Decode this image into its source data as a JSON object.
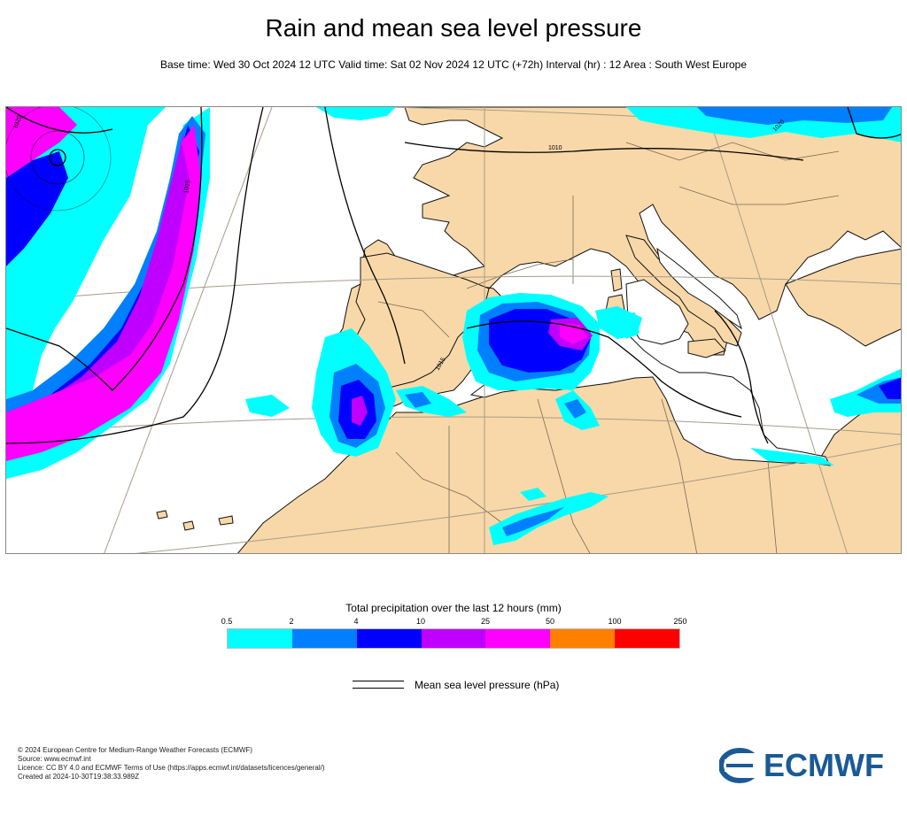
{
  "header": {
    "title": "Rain and mean sea level pressure",
    "subtitle": "Base time: Wed 30 Oct 2024 12 UTC Valid time: Sat 02 Nov 2024 12 UTC (+72h) Interval (hr) : 12 Area : South West Europe"
  },
  "map": {
    "isobar_labels": [
      "1020",
      "1015",
      "1010",
      "1015",
      "1020"
    ],
    "colors": {
      "land": "#f8d8a8",
      "sea": "#ffffff",
      "border": "#7a6a55",
      "coast": "#111111",
      "graticule": "#a89c8a"
    }
  },
  "legend": {
    "title": "Total precipitation over the last 12 hours (mm)",
    "ticks": [
      "0.5",
      "2",
      "4",
      "10",
      "25",
      "50",
      "100",
      "250"
    ],
    "colors": [
      "#00ffff",
      "#0080ff",
      "#0000ff",
      "#c000ff",
      "#ff00ff",
      "#ff8000",
      "#ff0000"
    ],
    "pressure_label": "Mean sea level pressure (hPa)"
  },
  "footer": {
    "lines": [
      "© 2024 European Centre for Medium-Range Weather Forecasts (ECMWF)",
      "Source: www.ecmwf.int",
      "Licence: CC BY 4.0 and ECMWF Terms of Use (https://apps.ecmwf.int/datasets/licences/general/)",
      "Created at 2024-10-30T19:38:33.989Z"
    ],
    "logo_text": "ECMWF"
  }
}
